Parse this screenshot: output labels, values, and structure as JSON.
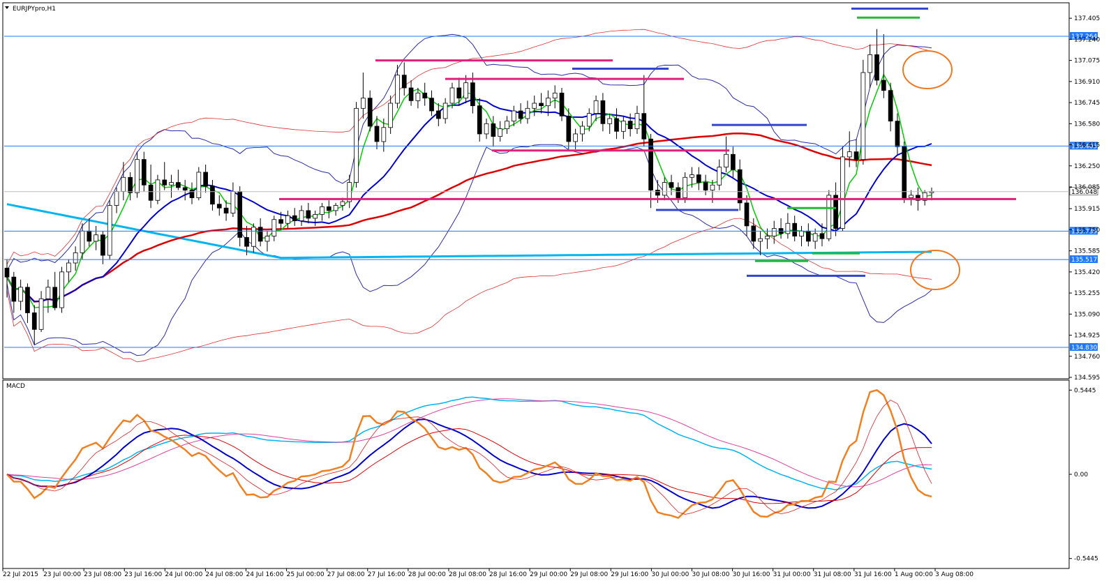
{
  "chart_data": {
    "type": "candlestick",
    "symbol_label": "EURJPYpro,H1",
    "indicator_label": "MACD",
    "x_tick_labels": [
      "22 Jul 2015",
      "23 Jul 00:00",
      "23 Jul 08:00",
      "23 Jul 16:00",
      "24 Jul 00:00",
      "24 Jul 08:00",
      "24 Jul 16:00",
      "25 Jul 00:00",
      "27 Jul 08:00",
      "27 Jul 16:00",
      "28 Jul 00:00",
      "28 Jul 08:00",
      "28 Jul 16:00",
      "29 Jul 00:00",
      "29 Jul 08:00",
      "29 Jul 16:00",
      "30 Jul 00:00",
      "30 Jul 08:00",
      "30 Jul 16:00",
      "31 Jul 00:00",
      "31 Jul 08:00",
      "31 Jul 16:00",
      "1 Aug 00:00",
      "3 Aug 08:00"
    ],
    "price_axis": {
      "ylim": [
        134.595,
        137.515
      ],
      "tick_labels": [
        "137.405",
        "137.240",
        "137.075",
        "136.910",
        "136.745",
        "136.580",
        "136.415",
        "136.250",
        "136.085",
        "135.915",
        "135.750",
        "135.585",
        "135.420",
        "135.255",
        "135.090",
        "134.925",
        "134.760",
        "134.595"
      ],
      "current_price": "136.048",
      "level_labels": [
        "137.264",
        "136.405",
        "135.739",
        "135.517",
        "134.830"
      ],
      "levels": [
        137.264,
        136.405,
        135.739,
        135.517,
        134.83
      ]
    },
    "macd_axis": {
      "ylim": [
        -0.6,
        0.6
      ],
      "tick_labels": [
        "0.5445",
        "0.00",
        "-0.5445"
      ]
    },
    "ohlc": [
      [
        135.45,
        135.52,
        135.22,
        135.38
      ],
      [
        135.38,
        135.42,
        135.1,
        135.19
      ],
      [
        135.19,
        135.36,
        135.12,
        135.3
      ],
      [
        135.3,
        135.33,
        135.02,
        135.1
      ],
      [
        135.1,
        135.16,
        134.85,
        134.97
      ],
      [
        134.97,
        135.27,
        134.95,
        135.21
      ],
      [
        135.21,
        135.36,
        135.1,
        135.3
      ],
      [
        135.3,
        135.42,
        135.12,
        135.14
      ],
      [
        135.14,
        135.46,
        135.1,
        135.42
      ],
      [
        135.42,
        135.52,
        135.34,
        135.49
      ],
      [
        135.49,
        135.62,
        135.43,
        135.57
      ],
      [
        135.57,
        135.8,
        135.52,
        135.74
      ],
      [
        135.74,
        135.84,
        135.62,
        135.66
      ],
      [
        135.66,
        135.78,
        135.59,
        135.71
      ],
      [
        135.71,
        135.74,
        135.48,
        135.55
      ],
      [
        135.55,
        135.98,
        135.52,
        135.94
      ],
      [
        135.94,
        136.08,
        135.88,
        136.05
      ],
      [
        136.05,
        136.28,
        135.98,
        136.16
      ],
      [
        136.16,
        136.2,
        135.98,
        136.04
      ],
      [
        136.04,
        136.36,
        136.0,
        136.3
      ],
      [
        136.3,
        136.36,
        136.05,
        136.1
      ],
      [
        136.1,
        136.26,
        135.92,
        135.98
      ],
      [
        135.98,
        136.18,
        135.95,
        136.14
      ],
      [
        136.14,
        136.28,
        136.06,
        136.1
      ],
      [
        136.1,
        136.18,
        136.0,
        136.12
      ],
      [
        136.12,
        136.22,
        136.06,
        136.08
      ],
      [
        136.08,
        136.14,
        135.98,
        136.06
      ],
      [
        136.06,
        136.12,
        135.95,
        136.0
      ],
      [
        136.0,
        136.24,
        135.98,
        136.2
      ],
      [
        136.2,
        136.26,
        136.04,
        136.09
      ],
      [
        136.09,
        136.14,
        135.9,
        135.95
      ],
      [
        135.95,
        136.02,
        135.86,
        135.92
      ],
      [
        135.92,
        135.98,
        135.82,
        135.88
      ],
      [
        135.88,
        136.12,
        135.85,
        136.05
      ],
      [
        136.05,
        136.09,
        135.62,
        135.69
      ],
      [
        135.69,
        135.78,
        135.55,
        135.62
      ],
      [
        135.62,
        135.8,
        135.57,
        135.77
      ],
      [
        135.77,
        135.84,
        135.62,
        135.66
      ],
      [
        135.66,
        135.74,
        135.58,
        135.7
      ],
      [
        135.7,
        135.86,
        135.66,
        135.83
      ],
      [
        135.83,
        135.89,
        135.75,
        135.8
      ],
      [
        135.8,
        135.9,
        135.76,
        135.86
      ],
      [
        135.86,
        135.92,
        135.78,
        135.82
      ],
      [
        135.82,
        135.94,
        135.78,
        135.9
      ],
      [
        135.9,
        135.96,
        135.8,
        135.84
      ],
      [
        135.84,
        135.9,
        135.78,
        135.87
      ],
      [
        135.87,
        135.96,
        135.82,
        135.93
      ],
      [
        135.93,
        135.98,
        135.84,
        135.9
      ],
      [
        135.9,
        135.96,
        135.86,
        135.94
      ],
      [
        135.94,
        136.0,
        135.9,
        135.97
      ],
      [
        135.97,
        136.18,
        135.92,
        136.12
      ],
      [
        136.12,
        136.75,
        136.08,
        136.7
      ],
      [
        136.7,
        136.98,
        136.62,
        136.78
      ],
      [
        136.78,
        136.84,
        136.52,
        136.56
      ],
      [
        136.56,
        136.64,
        136.38,
        136.44
      ],
      [
        136.44,
        136.62,
        136.36,
        136.55
      ],
      [
        136.55,
        136.8,
        136.5,
        136.74
      ],
      [
        136.74,
        137.04,
        136.7,
        136.96
      ],
      [
        136.96,
        137.06,
        136.8,
        136.86
      ],
      [
        136.86,
        136.92,
        136.72,
        136.76
      ],
      [
        136.76,
        136.86,
        136.7,
        136.82
      ],
      [
        136.82,
        136.9,
        136.72,
        136.78
      ],
      [
        136.78,
        136.84,
        136.64,
        136.68
      ],
      [
        136.68,
        136.74,
        136.56,
        136.62
      ],
      [
        136.62,
        136.78,
        136.58,
        136.74
      ],
      [
        136.74,
        136.9,
        136.7,
        136.86
      ],
      [
        136.86,
        136.94,
        136.72,
        136.78
      ],
      [
        136.78,
        136.96,
        136.74,
        136.9
      ],
      [
        136.9,
        136.98,
        136.66,
        136.72
      ],
      [
        136.72,
        136.78,
        136.44,
        136.5
      ],
      [
        136.5,
        136.62,
        136.46,
        136.58
      ],
      [
        136.58,
        136.64,
        136.4,
        136.48
      ],
      [
        136.48,
        136.6,
        136.44,
        136.54
      ],
      [
        136.54,
        136.64,
        136.5,
        136.6
      ],
      [
        136.6,
        136.72,
        136.56,
        136.68
      ],
      [
        136.68,
        136.74,
        136.58,
        136.62
      ],
      [
        136.62,
        136.76,
        136.58,
        136.7
      ],
      [
        136.7,
        136.8,
        136.64,
        136.74
      ],
      [
        136.74,
        136.82,
        136.66,
        136.72
      ],
      [
        136.72,
        136.84,
        136.64,
        136.78
      ],
      [
        136.78,
        136.88,
        136.7,
        136.82
      ],
      [
        136.82,
        136.86,
        136.6,
        136.64
      ],
      [
        136.64,
        136.7,
        136.38,
        136.44
      ],
      [
        136.44,
        136.54,
        136.38,
        136.5
      ],
      [
        136.5,
        136.6,
        136.44,
        136.56
      ],
      [
        136.56,
        136.7,
        136.52,
        136.66
      ],
      [
        136.66,
        136.8,
        136.6,
        136.76
      ],
      [
        136.76,
        136.82,
        136.52,
        136.58
      ],
      [
        136.58,
        136.66,
        136.5,
        136.62
      ],
      [
        136.62,
        136.7,
        136.46,
        136.52
      ],
      [
        136.52,
        136.64,
        136.46,
        136.6
      ],
      [
        136.6,
        136.66,
        136.48,
        136.54
      ],
      [
        136.54,
        136.72,
        136.5,
        136.66
      ],
      [
        136.66,
        136.96,
        136.4,
        136.46
      ],
      [
        136.46,
        136.5,
        135.92,
        136.06
      ],
      [
        136.06,
        136.14,
        135.96,
        136.02
      ],
      [
        136.02,
        136.16,
        135.98,
        136.12
      ],
      [
        136.12,
        136.18,
        136.02,
        136.08
      ],
      [
        136.08,
        136.12,
        135.96,
        136.0
      ],
      [
        136.0,
        136.2,
        135.96,
        136.16
      ],
      [
        136.16,
        136.24,
        136.08,
        136.18
      ],
      [
        136.18,
        136.24,
        136.06,
        136.12
      ],
      [
        136.12,
        136.18,
        136.02,
        136.06
      ],
      [
        136.06,
        136.14,
        135.96,
        136.1
      ],
      [
        136.1,
        136.3,
        136.06,
        136.24
      ],
      [
        136.24,
        136.48,
        136.2,
        136.34
      ],
      [
        136.34,
        136.4,
        136.16,
        136.22
      ],
      [
        136.22,
        136.3,
        135.9,
        135.96
      ],
      [
        135.96,
        136.02,
        135.7,
        135.78
      ],
      [
        135.78,
        135.84,
        135.6,
        135.66
      ],
      [
        135.66,
        135.74,
        135.55,
        135.68
      ],
      [
        135.68,
        135.76,
        135.6,
        135.7
      ],
      [
        135.7,
        135.82,
        135.64,
        135.76
      ],
      [
        135.76,
        135.84,
        135.68,
        135.72
      ],
      [
        135.72,
        135.88,
        135.68,
        135.8
      ],
      [
        135.8,
        135.86,
        135.66,
        135.7
      ],
      [
        135.7,
        135.78,
        135.62,
        135.74
      ],
      [
        135.74,
        135.8,
        135.62,
        135.66
      ],
      [
        135.66,
        135.76,
        135.6,
        135.72
      ],
      [
        135.72,
        135.8,
        135.62,
        135.68
      ],
      [
        135.68,
        136.06,
        135.66,
        136.02
      ],
      [
        136.02,
        136.12,
        135.7,
        135.76
      ],
      [
        135.76,
        136.4,
        135.74,
        136.32
      ],
      [
        136.32,
        136.52,
        136.24,
        136.36
      ],
      [
        136.36,
        136.46,
        136.24,
        136.3
      ],
      [
        136.3,
        137.08,
        136.26,
        136.98
      ],
      [
        136.98,
        137.2,
        136.86,
        137.12
      ],
      [
        137.12,
        137.32,
        136.88,
        136.92
      ],
      [
        136.92,
        137.28,
        136.78,
        136.84
      ],
      [
        136.84,
        136.9,
        136.52,
        136.6
      ],
      [
        136.6,
        136.66,
        136.34,
        136.4
      ],
      [
        136.4,
        136.44,
        135.96,
        136.0
      ],
      [
        136.0,
        136.06,
        135.94,
        136.02
      ],
      [
        136.02,
        136.08,
        135.9,
        135.98
      ],
      [
        135.98,
        136.06,
        135.94,
        136.04
      ],
      [
        136.04,
        136.08,
        135.98,
        136.05
      ]
    ],
    "support_resistance_segments": [],
    "series": [
      {
        "name": "",
        "kind": "ma",
        "color": "#00cc00"
      },
      {
        "name": "",
        "kind": "ma",
        "color": "#0000cc"
      },
      {
        "name": "",
        "kind": "ma",
        "color": "#dd0000"
      },
      {
        "name": "",
        "kind": "ma",
        "color": "#00aaee"
      },
      {
        "name": "",
        "kind": "band",
        "color": "#2222aa"
      },
      {
        "name": "",
        "kind": "band",
        "color": "#dd2222"
      }
    ],
    "annotations": [
      "orange-circle-upper",
      "orange-circle-lower"
    ]
  }
}
